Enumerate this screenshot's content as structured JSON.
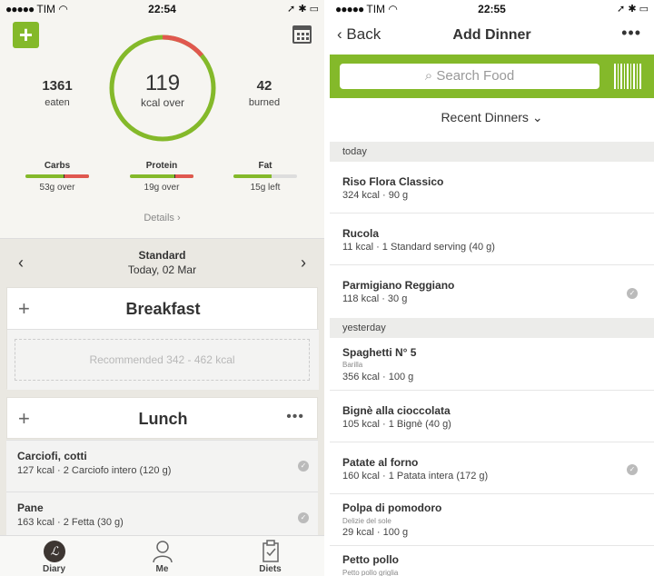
{
  "colors": {
    "brand_green": "#84b92a",
    "over_red": "#e0584f"
  },
  "left": {
    "status": {
      "carrier": "TIM",
      "time": "22:54"
    },
    "summary": {
      "eaten_value": "1361",
      "eaten_label": "eaten",
      "kcal_value": "119",
      "kcal_label": "kcal over",
      "burned_value": "42",
      "burned_label": "burned",
      "ring_progress_fraction": 0.92
    },
    "macros": [
      {
        "name": "Carbs",
        "value": "53g over",
        "fill": 1.0
      },
      {
        "name": "Protein",
        "value": "19g over",
        "fill": 1.0
      },
      {
        "name": "Fat",
        "value": "15g left",
        "fill": 0.7
      }
    ],
    "details_label": "Details",
    "date": {
      "plan": "Standard",
      "date": "Today, 02 Mar"
    },
    "breakfast": {
      "title": "Breakfast",
      "recommended": "Recommended 342 - 462 kcal"
    },
    "lunch": {
      "title": "Lunch",
      "items": [
        {
          "name": "Carciofi, cotti",
          "sub": "127 kcal · 2 Carciofo intero (120 g)"
        },
        {
          "name": "Pane",
          "sub": "163 kcal · 2 Fetta (30 g)"
        }
      ]
    },
    "tabs": [
      {
        "label": "Diary"
      },
      {
        "label": "Me"
      },
      {
        "label": "Diets"
      }
    ]
  },
  "right": {
    "status": {
      "carrier": "TIM",
      "time": "22:55"
    },
    "nav": {
      "back_label": "Back",
      "title": "Add Dinner"
    },
    "search": {
      "placeholder": "Search Food"
    },
    "recent_label": "Recent Dinners",
    "sections": [
      {
        "label": "today"
      },
      {
        "label": "yesterday"
      }
    ],
    "foods": [
      {
        "name": "Riso Flora Classico",
        "brand": "",
        "sub": "324 kcal · 90 g"
      },
      {
        "name": "Rucola",
        "brand": "",
        "sub": "11 kcal · 1 Standard serving (40 g)"
      },
      {
        "name": "Parmigiano Reggiano",
        "brand": "",
        "sub": "118 kcal · 30 g",
        "verified": true
      },
      {
        "name": "Spaghetti N° 5",
        "brand": "Barilla",
        "sub": "356 kcal · 100 g"
      },
      {
        "name": "Bignè alla cioccolata",
        "brand": "",
        "sub": "105 kcal · 1 Bignè (40 g)"
      },
      {
        "name": "Patate al forno",
        "brand": "",
        "sub": "160 kcal · 1 Patata intera (172 g)",
        "verified": true
      },
      {
        "name": "Polpa di pomodoro",
        "brand": "Delizie del sole",
        "sub": "29 kcal · 100 g"
      },
      {
        "name": "Petto pollo",
        "brand": "Petto pollo griglia",
        "sub": ""
      }
    ]
  }
}
